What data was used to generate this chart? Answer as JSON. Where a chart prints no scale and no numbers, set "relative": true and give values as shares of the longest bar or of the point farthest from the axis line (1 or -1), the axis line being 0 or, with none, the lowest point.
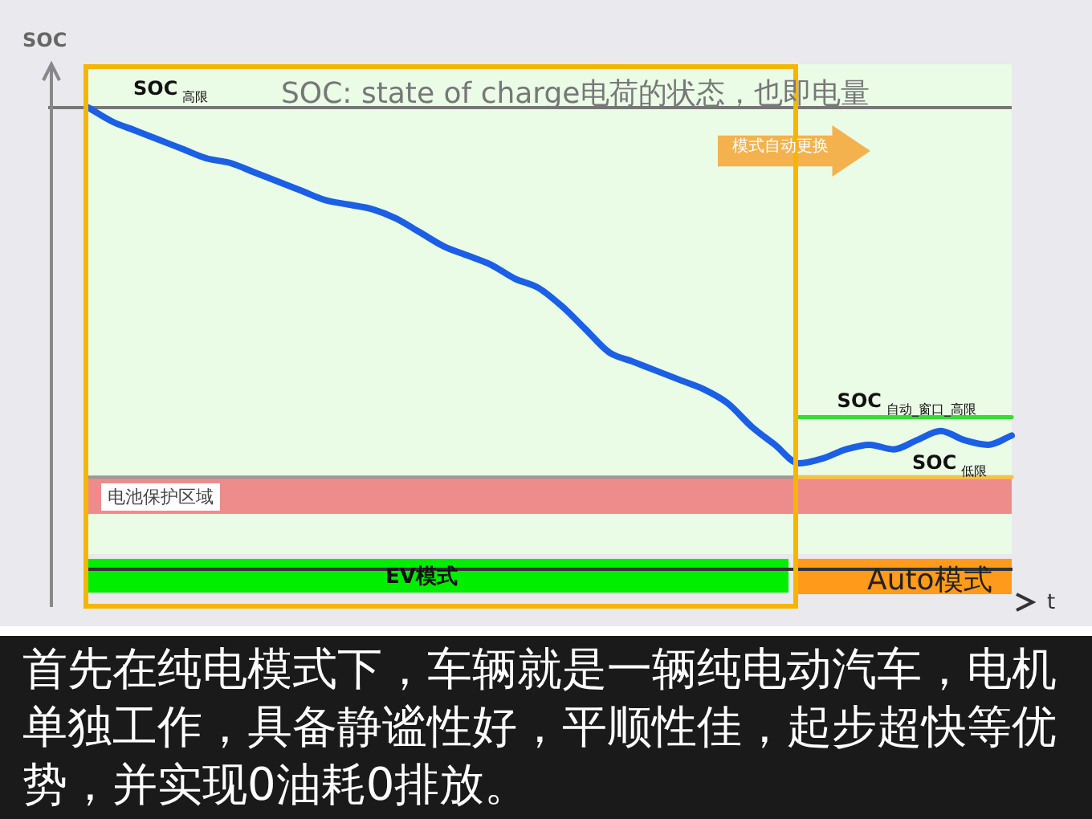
{
  "chart_data": {
    "type": "line",
    "title": "SOC: state of charge电荷的状态，也即电量",
    "xlabel": "t",
    "ylabel": "SOC",
    "relative": true,
    "legend": false,
    "grid": false,
    "marker": "none",
    "categories": [
      null,
      null,
      null,
      null,
      null,
      null,
      null,
      null,
      null,
      null,
      null,
      null,
      null,
      null,
      null,
      null,
      null,
      null,
      null,
      null,
      null,
      null,
      null,
      null,
      null,
      null,
      null,
      null,
      null,
      null,
      null,
      null,
      null,
      null,
      null,
      null,
      null,
      null,
      null,
      null
    ],
    "series": [
      {
        "color": "#1a5fe6",
        "values": [
          1.0,
          0.97,
          0.95,
          0.93,
          0.91,
          0.89,
          0.88,
          0.86,
          0.84,
          0.82,
          0.8,
          0.79,
          0.78,
          0.76,
          0.73,
          0.7,
          0.68,
          0.66,
          0.63,
          0.61,
          0.57,
          0.52,
          0.47,
          0.45,
          0.43,
          0.41,
          0.39,
          0.36,
          0.31,
          0.27,
          0.23,
          0.24,
          0.26,
          0.27,
          0.26,
          0.28,
          0.3,
          0.28,
          0.27,
          0.29
        ]
      },
      {
        "name": "SOC$_{自动_窗口_高限}$",
        "color": "#33dd33",
        "values": [
          null,
          null,
          null,
          null,
          null,
          null,
          null,
          null,
          null,
          null,
          null,
          null,
          null,
          null,
          null,
          null,
          null,
          null,
          null,
          null,
          null,
          null,
          null,
          null,
          null,
          null,
          null,
          null,
          null,
          null,
          0.33,
          0.33,
          0.33,
          0.33,
          0.33,
          0.33,
          0.33,
          0.33,
          0.33,
          0.33
        ]
      },
      {
        "name": "SOC$_{低限}$",
        "color": "#f5c242",
        "values": [
          null,
          null,
          null,
          null,
          null,
          null,
          null,
          null,
          null,
          null,
          null,
          null,
          null,
          null,
          null,
          null,
          null,
          null,
          null,
          null,
          null,
          null,
          null,
          null,
          null,
          null,
          null,
          null,
          null,
          null,
          0.2,
          0.2,
          0.2,
          0.2,
          0.2,
          0.2,
          0.2,
          0.2,
          0.2,
          0.2
        ]
      }
    ],
    "ref_lines": [
      {
        "axis": "y",
        "value": 1.0,
        "label": "SOC$_{高限}$",
        "color": "#777777"
      },
      {
        "axis": "y",
        "value": 0.2,
        "label": null,
        "color": "#999999"
      }
    ],
    "bands": [
      {
        "axis": "y",
        "from": 0.12,
        "to": 0.2,
        "label": "电池保护区域",
        "color": "#ee8c8c"
      }
    ],
    "annotations": [
      "模式自动更换",
      "EV模式",
      "Auto模式",
      "首先在纯电模式下，车辆就是一辆纯电动汽车，电机单独工作，具备静谧性好，平顺性佳，起步超快等优势，并实现0油耗0排放。"
    ]
  }
}
